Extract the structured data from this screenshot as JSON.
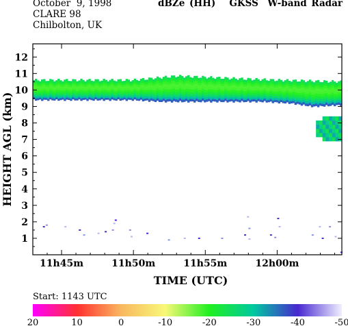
{
  "header": {
    "date": "October  9, 1998",
    "campaign": "CLARE 98",
    "location": "Chilbolton, UK",
    "title": "dBZe (HH)   GKSS  W-band Radar"
  },
  "start_label": "Start: 1143 UTC",
  "chart_data": {
    "type": "heatmap",
    "title": "dBZe (HH)   GKSS  W-band Radar",
    "xlabel": "TIME (UTC)",
    "ylabel": "HEIGHT AGL (km)",
    "x_ticks": [
      "11h45m",
      "11h50m",
      "11h55m",
      "12h00m"
    ],
    "x_tick_minutes": [
      45,
      50,
      55,
      60
    ],
    "xlim_minutes_past_11h": [
      43,
      64.5
    ],
    "y_ticks": [
      "1",
      "2",
      "3",
      "4",
      "5",
      "6",
      "7",
      "8",
      "9",
      "10",
      "11",
      "12"
    ],
    "ylim_km": [
      0,
      12.8
    ],
    "colorbar": {
      "labels": [
        "20",
        "10",
        "0",
        "-10",
        "-20",
        "-30",
        "-40",
        "-50"
      ],
      "range_dbz": [
        20,
        -50
      ],
      "colors": [
        "#ff00ff",
        "#ff3030",
        "#f8b860",
        "#f8f878",
        "#20f020",
        "#00c8a0",
        "#4828d0",
        "#f0f0ff"
      ]
    },
    "cloud_layer": {
      "top_km": [
        [
          43,
          10.6
        ],
        [
          50,
          10.6
        ],
        [
          53,
          10.85
        ],
        [
          57,
          10.7
        ],
        [
          60,
          10.6
        ],
        [
          64.5,
          10.5
        ]
      ],
      "base_km": [
        [
          43,
          9.4
        ],
        [
          50,
          9.4
        ],
        [
          52,
          9.3
        ],
        [
          56,
          9.3
        ],
        [
          59,
          9.3
        ],
        [
          61,
          9.2
        ],
        [
          62.5,
          9.0
        ],
        [
          64.5,
          9.1
        ]
      ],
      "core_dbz": -18,
      "edge_dbz": -38
    },
    "lower_patch": {
      "x_range_minutes": [
        62.7,
        64.5
      ],
      "top_km": 8.4,
      "base_km": 6.9,
      "dbz": -30
    },
    "noise_echoes_km": [
      {
        "x": 43.7,
        "y": 1.7
      },
      {
        "x": 43.9,
        "y": 1.8
      },
      {
        "x": 45.2,
        "y": 1.7
      },
      {
        "x": 46.2,
        "y": 1.5
      },
      {
        "x": 46.5,
        "y": 1.2
      },
      {
        "x": 47.5,
        "y": 1.3
      },
      {
        "x": 48.0,
        "y": 1.4
      },
      {
        "x": 48.5,
        "y": 1.5
      },
      {
        "x": 48.6,
        "y": 1.9
      },
      {
        "x": 48.7,
        "y": 2.1
      },
      {
        "x": 49.7,
        "y": 1.5
      },
      {
        "x": 49.8,
        "y": 1.1
      },
      {
        "x": 50.9,
        "y": 1.3
      },
      {
        "x": 52.4,
        "y": 0.9
      },
      {
        "x": 53.5,
        "y": 1.0
      },
      {
        "x": 54.5,
        "y": 1.0
      },
      {
        "x": 56.1,
        "y": 1.0
      },
      {
        "x": 57.9,
        "y": 2.3
      },
      {
        "x": 57.7,
        "y": 1.2
      },
      {
        "x": 58.0,
        "y": 1.6
      },
      {
        "x": 58.0,
        "y": 0.95
      },
      {
        "x": 59.5,
        "y": 1.2
      },
      {
        "x": 59.8,
        "y": 1.05
      },
      {
        "x": 60.1,
        "y": 1.7
      },
      {
        "x": 60.0,
        "y": 2.2
      },
      {
        "x": 62.4,
        "y": 1.2
      },
      {
        "x": 62.9,
        "y": 1.7
      },
      {
        "x": 63.1,
        "y": 1.0
      },
      {
        "x": 63.6,
        "y": 1.7
      },
      {
        "x": 64.0,
        "y": 1.1
      },
      {
        "x": 64.4,
        "y": 0.15
      }
    ]
  }
}
